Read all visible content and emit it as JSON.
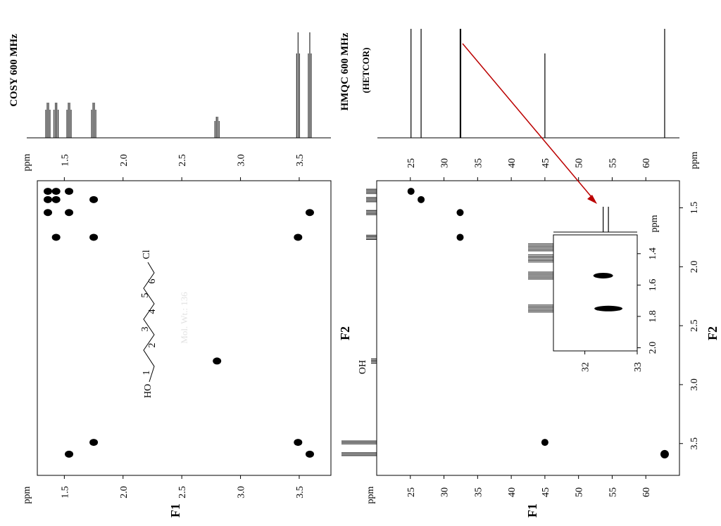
{
  "chart_data": [
    {
      "type": "scatter",
      "name": "COSY",
      "title": "COSY 600 MHz",
      "f1_label": "F1",
      "ppm_label_top": "ppm",
      "ppm_label_bottom": "ppm",
      "range": [
        1.27,
        3.77
      ],
      "ticks": [
        "1.5",
        "2.0",
        "2.5",
        "3.0",
        "3.5"
      ],
      "tick_values": [
        1.5,
        2.0,
        2.5,
        3.0,
        3.5
      ],
      "projection_peaks": [
        1.36,
        1.43,
        1.54,
        1.75,
        2.8,
        3.49,
        3.59
      ],
      "cross_peaks": [
        {
          "f1": 1.36,
          "f2": 1.36
        },
        {
          "f1": 1.36,
          "f2": 1.43
        },
        {
          "f1": 1.36,
          "f2": 1.54
        },
        {
          "f1": 1.43,
          "f2": 1.36
        },
        {
          "f1": 1.43,
          "f2": 1.43
        },
        {
          "f1": 1.43,
          "f2": 1.75
        },
        {
          "f1": 1.54,
          "f2": 1.36
        },
        {
          "f1": 1.54,
          "f2": 1.54
        },
        {
          "f1": 1.54,
          "f2": 3.59
        },
        {
          "f1": 1.75,
          "f2": 1.43
        },
        {
          "f1": 1.75,
          "f2": 1.75
        },
        {
          "f1": 1.75,
          "f2": 3.49
        },
        {
          "f1": 2.8,
          "f2": 2.8
        },
        {
          "f1": 3.49,
          "f2": 1.75
        },
        {
          "f1": 3.49,
          "f2": 3.49
        },
        {
          "f1": 3.59,
          "f2": 1.54
        },
        {
          "f1": 3.59,
          "f2": 3.59
        }
      ]
    },
    {
      "type": "scatter",
      "name": "HMQC",
      "title": "HMQC 600 MHz",
      "subtitle": "(HETCOR)",
      "f1_label": "F1",
      "f2_label": "F2",
      "ppm_label_top": "ppm",
      "ppm_label_bottom": "ppm",
      "oh_label": "OH",
      "h_range": [
        1.27,
        3.77
      ],
      "h_ticks": [
        "1.5",
        "2.0",
        "2.5",
        "3.0",
        "3.5"
      ],
      "h_tick_values": [
        1.5,
        2.0,
        2.5,
        3.0,
        3.5
      ],
      "c_range": [
        20.0,
        65.0
      ],
      "c_ticks": [
        "25",
        "30",
        "35",
        "40",
        "45",
        "50",
        "55",
        "60"
      ],
      "c_tick_values": [
        25,
        30,
        35,
        40,
        45,
        50,
        55,
        60
      ],
      "carbon_peaks": [
        25.1,
        26.6,
        32.4,
        32.5,
        45.0,
        62.8
      ],
      "proton_peaks": [
        1.36,
        1.43,
        1.54,
        1.75,
        2.8,
        3.49,
        3.59
      ],
      "cross_peaks": [
        {
          "h": 1.36,
          "c": 25.1
        },
        {
          "h": 1.43,
          "c": 26.6
        },
        {
          "h": 1.54,
          "c": 32.4
        },
        {
          "h": 1.75,
          "c": 32.4
        },
        {
          "h": 3.49,
          "c": 45.0
        },
        {
          "h": 3.59,
          "c": 62.8
        }
      ]
    },
    {
      "type": "scatter",
      "name": "HMQC inset",
      "ppm_label": "ppm",
      "h_range": [
        1.28,
        2.02
      ],
      "h_ticks": [
        "1.4",
        "1.6",
        "1.8",
        "2.0"
      ],
      "h_tick_values": [
        1.4,
        1.6,
        1.8,
        2.0
      ],
      "c_range": [
        31.4,
        33.0
      ],
      "c_ticks": [
        "32",
        "33"
      ],
      "c_tick_values": [
        32,
        33
      ],
      "cross_peaks": [
        {
          "h": 1.54,
          "c": 32.35
        },
        {
          "h": 1.75,
          "c": 32.45
        }
      ]
    }
  ],
  "structure": {
    "ho": "HO",
    "cl": "Cl",
    "positions": [
      "1",
      "2",
      "3",
      "4",
      "5",
      "6"
    ],
    "mol_weight": "Mol. Wt.: 136"
  }
}
